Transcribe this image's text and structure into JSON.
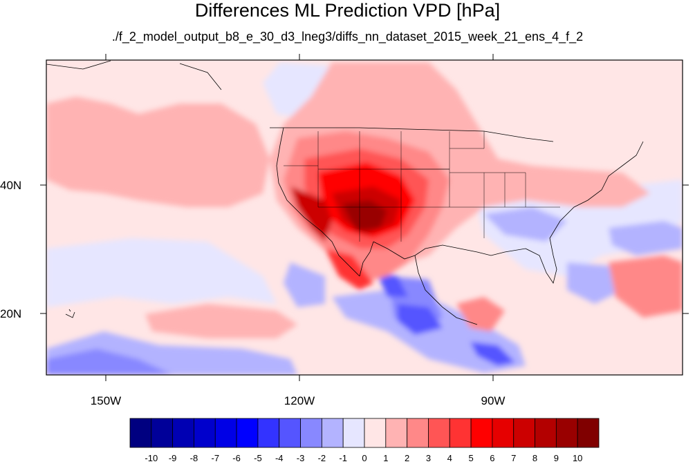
{
  "title": "Differences ML Prediction VPD [hPa]",
  "subtitle": "./f_2_model_output_b8_e_30_d3_lneg3/diffs_nn_dataset_2015_week_21_ens_4_f_2",
  "lon_labels": [
    "150W",
    "120W",
    "90W"
  ],
  "lat_labels": [
    "40N",
    "20N"
  ],
  "colorbar": {
    "labels": [
      "-10",
      "-9",
      "-8",
      "-7",
      "-6",
      "-5",
      "-4",
      "-3",
      "-2",
      "-1",
      "0",
      "1",
      "2",
      "3",
      "4",
      "5",
      "6",
      "7",
      "8",
      "9",
      "10"
    ],
    "colors": [
      "#000080",
      "#000099",
      "#0000b3",
      "#0000cc",
      "#0000e6",
      "#0000ff",
      "#3333ff",
      "#5555ff",
      "#8888ff",
      "#b3b3ff",
      "#e6e6ff",
      "#ffe6e6",
      "#ffb3b3",
      "#ff8888",
      "#ff5555",
      "#ff3333",
      "#ff0000",
      "#e60000",
      "#cc0000",
      "#b30000",
      "#990000",
      "#800000"
    ]
  }
}
